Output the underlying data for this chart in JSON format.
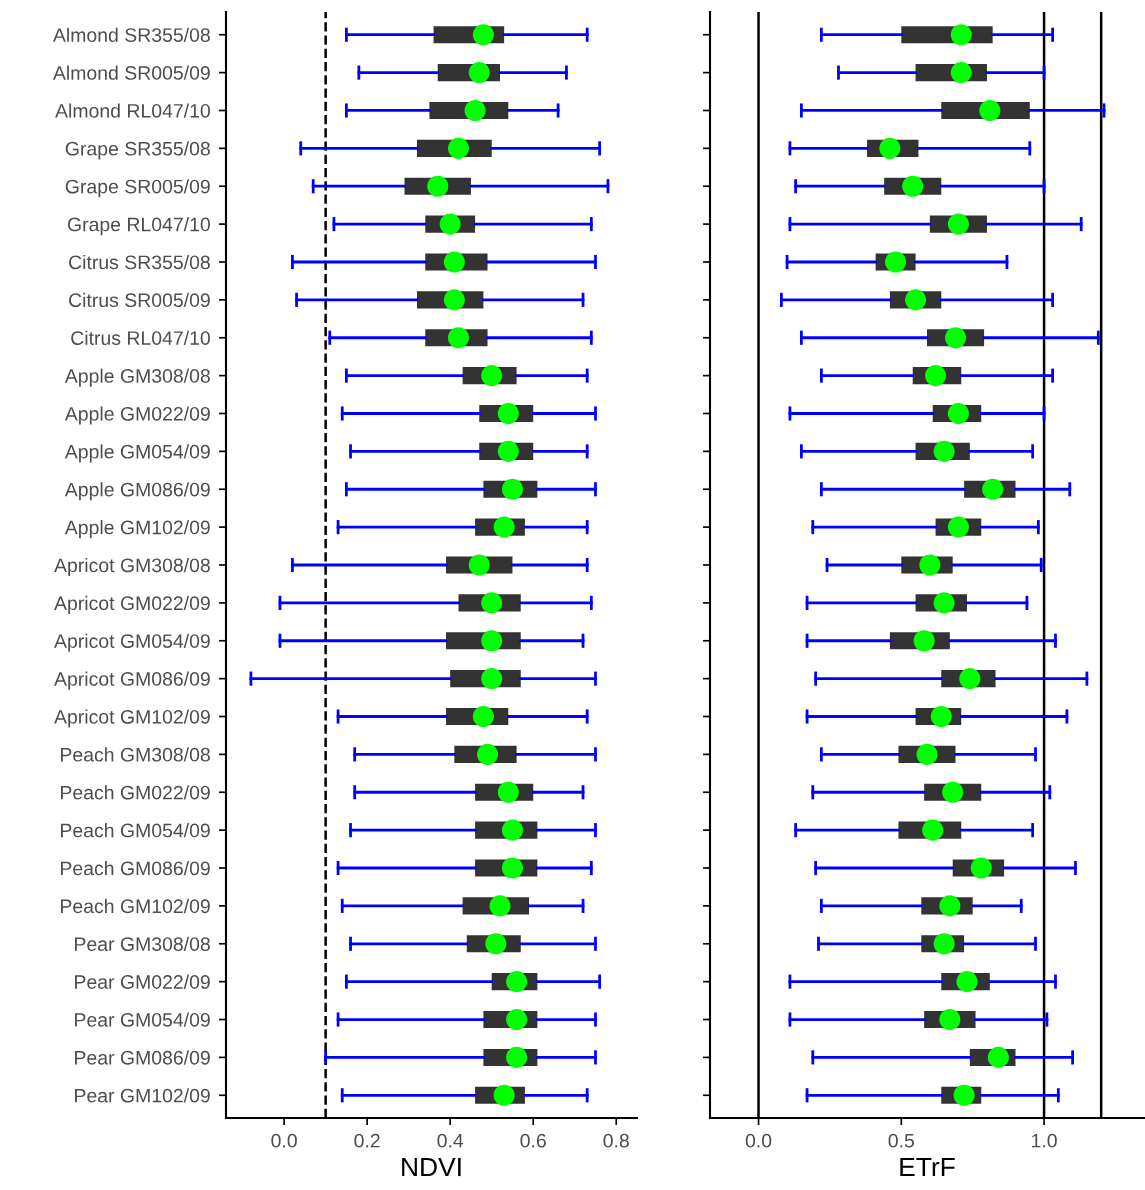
{
  "chart_data": [
    {
      "type": "box",
      "orientation": "horizontal",
      "xlabel": "NDVI",
      "xlim": [
        -0.14,
        0.85
      ],
      "xticks": [
        {
          "value": 0,
          "label": "0.0"
        },
        {
          "value": 0.2,
          "label": "0.2"
        },
        {
          "value": 0.4,
          "label": "0.4"
        },
        {
          "value": 0.6,
          "label": "0.6"
        },
        {
          "value": 0.8,
          "label": "0.8"
        }
      ],
      "grid": false,
      "categories": [
        "Almond SR355/08",
        "Almond SR005/09",
        "Almond RL047/10",
        "Grape SR355/08",
        "Grape SR005/09",
        "Grape RL047/10",
        "Citrus SR355/08",
        "Citrus SR005/09",
        "Citrus RL047/10",
        "Apple GM308/08",
        "Apple GM022/09",
        "Apple GM054/09",
        "Apple GM086/09",
        "Apple GM102/09",
        "Apricot GM308/08",
        "Apricot GM022/09",
        "Apricot GM054/09",
        "Apricot GM086/09",
        "Apricot GM102/09",
        "Peach GM308/08",
        "Peach GM022/09",
        "Peach GM054/09",
        "Peach GM086/09",
        "Peach GM102/09",
        "Pear GM308/08",
        "Pear GM022/09",
        "Pear GM054/09",
        "Pear GM086/09",
        "Pear GM102/09"
      ],
      "ref_lines": [
        {
          "axis": "x",
          "value": 0.1,
          "color": "#000000",
          "line_style": "dashed"
        }
      ],
      "series": [
        {
          "color": "#333333",
          "boxes": [
            {
              "low": 0.15,
              "q1": 0.36,
              "median": 0.48,
              "q3": 0.53,
              "high": 0.73
            },
            {
              "low": 0.18,
              "q1": 0.37,
              "median": 0.47,
              "q3": 0.52,
              "high": 0.68
            },
            {
              "low": 0.15,
              "q1": 0.35,
              "median": 0.46,
              "q3": 0.54,
              "high": 0.66
            },
            {
              "low": 0.04,
              "q1": 0.32,
              "median": 0.42,
              "q3": 0.5,
              "high": 0.76
            },
            {
              "low": 0.07,
              "q1": 0.29,
              "median": 0.37,
              "q3": 0.45,
              "high": 0.78
            },
            {
              "low": 0.12,
              "q1": 0.34,
              "median": 0.4,
              "q3": 0.46,
              "high": 0.74
            },
            {
              "low": 0.02,
              "q1": 0.34,
              "median": 0.41,
              "q3": 0.49,
              "high": 0.75
            },
            {
              "low": 0.03,
              "q1": 0.32,
              "median": 0.41,
              "q3": 0.48,
              "high": 0.72
            },
            {
              "low": 0.11,
              "q1": 0.34,
              "median": 0.42,
              "q3": 0.49,
              "high": 0.74
            },
            {
              "low": 0.15,
              "q1": 0.43,
              "median": 0.5,
              "q3": 0.56,
              "high": 0.73
            },
            {
              "low": 0.14,
              "q1": 0.47,
              "median": 0.54,
              "q3": 0.6,
              "high": 0.75
            },
            {
              "low": 0.16,
              "q1": 0.47,
              "median": 0.54,
              "q3": 0.6,
              "high": 0.73
            },
            {
              "low": 0.15,
              "q1": 0.48,
              "median": 0.55,
              "q3": 0.61,
              "high": 0.75
            },
            {
              "low": 0.13,
              "q1": 0.46,
              "median": 0.53,
              "q3": 0.58,
              "high": 0.73
            },
            {
              "low": 0.02,
              "q1": 0.39,
              "median": 0.47,
              "q3": 0.55,
              "high": 0.73
            },
            {
              "low": -0.01,
              "q1": 0.42,
              "median": 0.5,
              "q3": 0.57,
              "high": 0.74
            },
            {
              "low": -0.01,
              "q1": 0.39,
              "median": 0.5,
              "q3": 0.57,
              "high": 0.72
            },
            {
              "low": -0.08,
              "q1": 0.4,
              "median": 0.5,
              "q3": 0.57,
              "high": 0.75
            },
            {
              "low": 0.13,
              "q1": 0.39,
              "median": 0.48,
              "q3": 0.54,
              "high": 0.73
            },
            {
              "low": 0.17,
              "q1": 0.41,
              "median": 0.49,
              "q3": 0.56,
              "high": 0.75
            },
            {
              "low": 0.17,
              "q1": 0.46,
              "median": 0.54,
              "q3": 0.6,
              "high": 0.72
            },
            {
              "low": 0.16,
              "q1": 0.46,
              "median": 0.55,
              "q3": 0.61,
              "high": 0.75
            },
            {
              "low": 0.13,
              "q1": 0.46,
              "median": 0.55,
              "q3": 0.61,
              "high": 0.74
            },
            {
              "low": 0.14,
              "q1": 0.43,
              "median": 0.52,
              "q3": 0.59,
              "high": 0.72
            },
            {
              "low": 0.16,
              "q1": 0.44,
              "median": 0.51,
              "q3": 0.57,
              "high": 0.75
            },
            {
              "low": 0.15,
              "q1": 0.5,
              "median": 0.56,
              "q3": 0.61,
              "high": 0.76
            },
            {
              "low": 0.13,
              "q1": 0.48,
              "median": 0.56,
              "q3": 0.61,
              "high": 0.75
            },
            {
              "low": 0.1,
              "q1": 0.48,
              "median": 0.56,
              "q3": 0.61,
              "high": 0.75
            },
            {
              "low": 0.14,
              "q1": 0.46,
              "median": 0.53,
              "q3": 0.58,
              "high": 0.73
            }
          ]
        }
      ]
    },
    {
      "type": "box",
      "orientation": "horizontal",
      "xlabel": "ETrF",
      "xlim": [
        -0.17,
        1.35
      ],
      "xticks": [
        {
          "value": 0,
          "label": "0.0"
        },
        {
          "value": 0.5,
          "label": "0.5"
        },
        {
          "value": 1,
          "label": "1.0"
        }
      ],
      "grid": false,
      "categories": [
        null,
        null,
        null,
        null,
        null,
        null,
        null,
        null,
        null,
        null,
        null,
        null,
        null,
        null,
        null,
        null,
        null,
        null,
        null,
        null,
        null,
        null,
        null,
        null,
        null,
        null,
        null,
        null,
        null
      ],
      "ref_lines": [
        {
          "axis": "x",
          "value": 0,
          "color": "#000000",
          "line_style": "solid"
        },
        {
          "axis": "x",
          "value": 1,
          "color": "#000000",
          "line_style": "solid"
        },
        {
          "axis": "x",
          "value": 1.2,
          "color": "#000000",
          "line_style": "solid"
        }
      ],
      "series": [
        {
          "color": "#333333",
          "boxes": [
            {
              "low": 0.22,
              "q1": 0.5,
              "median": 0.71,
              "q3": 0.82,
              "high": 1.03
            },
            {
              "low": 0.28,
              "q1": 0.55,
              "median": 0.71,
              "q3": 0.8,
              "high": 1.0
            },
            {
              "low": 0.15,
              "q1": 0.64,
              "median": 0.81,
              "q3": 0.95,
              "high": 1.21
            },
            {
              "low": 0.11,
              "q1": 0.38,
              "median": 0.46,
              "q3": 0.56,
              "high": 0.95
            },
            {
              "low": 0.13,
              "q1": 0.44,
              "median": 0.54,
              "q3": 0.64,
              "high": 1.0
            },
            {
              "low": 0.11,
              "q1": 0.6,
              "median": 0.7,
              "q3": 0.8,
              "high": 1.13
            },
            {
              "low": 0.1,
              "q1": 0.41,
              "median": 0.48,
              "q3": 0.55,
              "high": 0.87
            },
            {
              "low": 0.08,
              "q1": 0.46,
              "median": 0.55,
              "q3": 0.64,
              "high": 1.03
            },
            {
              "low": 0.15,
              "q1": 0.59,
              "median": 0.69,
              "q3": 0.79,
              "high": 1.19
            },
            {
              "low": 0.22,
              "q1": 0.54,
              "median": 0.62,
              "q3": 0.71,
              "high": 1.03
            },
            {
              "low": 0.11,
              "q1": 0.61,
              "median": 0.7,
              "q3": 0.78,
              "high": 1.0
            },
            {
              "low": 0.15,
              "q1": 0.55,
              "median": 0.65,
              "q3": 0.74,
              "high": 0.96
            },
            {
              "low": 0.22,
              "q1": 0.72,
              "median": 0.82,
              "q3": 0.9,
              "high": 1.09
            },
            {
              "low": 0.19,
              "q1": 0.62,
              "median": 0.7,
              "q3": 0.78,
              "high": 0.98
            },
            {
              "low": 0.24,
              "q1": 0.5,
              "median": 0.6,
              "q3": 0.68,
              "high": 0.99
            },
            {
              "low": 0.17,
              "q1": 0.55,
              "median": 0.65,
              "q3": 0.73,
              "high": 0.94
            },
            {
              "low": 0.17,
              "q1": 0.46,
              "median": 0.58,
              "q3": 0.67,
              "high": 1.04
            },
            {
              "low": 0.2,
              "q1": 0.64,
              "median": 0.74,
              "q3": 0.83,
              "high": 1.15
            },
            {
              "low": 0.17,
              "q1": 0.55,
              "median": 0.64,
              "q3": 0.71,
              "high": 1.08
            },
            {
              "low": 0.22,
              "q1": 0.49,
              "median": 0.59,
              "q3": 0.69,
              "high": 0.97
            },
            {
              "low": 0.19,
              "q1": 0.58,
              "median": 0.68,
              "q3": 0.78,
              "high": 1.02
            },
            {
              "low": 0.13,
              "q1": 0.49,
              "median": 0.61,
              "q3": 0.71,
              "high": 0.96
            },
            {
              "low": 0.2,
              "q1": 0.68,
              "median": 0.78,
              "q3": 0.86,
              "high": 1.11
            },
            {
              "low": 0.22,
              "q1": 0.57,
              "median": 0.67,
              "q3": 0.75,
              "high": 0.92
            },
            {
              "low": 0.21,
              "q1": 0.57,
              "median": 0.65,
              "q3": 0.72,
              "high": 0.97
            },
            {
              "low": 0.11,
              "q1": 0.64,
              "median": 0.73,
              "q3": 0.81,
              "high": 1.04
            },
            {
              "low": 0.11,
              "q1": 0.58,
              "median": 0.67,
              "q3": 0.76,
              "high": 1.01
            },
            {
              "low": 0.19,
              "q1": 0.74,
              "median": 0.84,
              "q3": 0.9,
              "high": 1.1
            },
            {
              "low": 0.17,
              "q1": 0.64,
              "median": 0.72,
              "q3": 0.78,
              "high": 1.05
            }
          ]
        }
      ]
    }
  ]
}
